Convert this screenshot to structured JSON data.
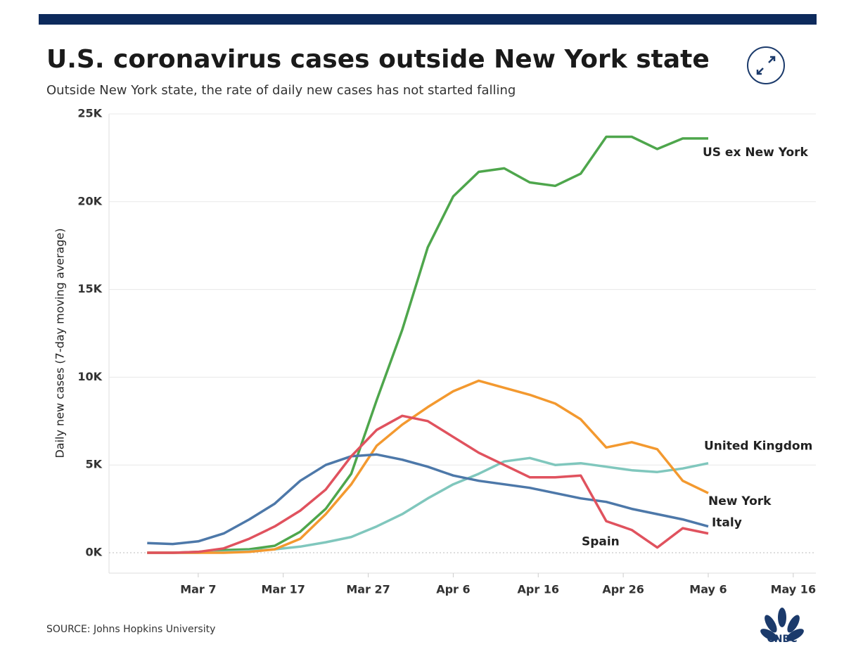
{
  "chart_data": {
    "type": "line",
    "title": "U.S. coronavirus cases outside New York state",
    "subtitle": "Outside New York state, the rate of daily new cases has not started falling",
    "y_label": "Daily new cases (7-day moving average)",
    "source": "SOURCE: Johns Hopkins University",
    "logo": "CNBC",
    "x": [
      "Mar 1",
      "Mar 4",
      "Mar 7",
      "Mar 10",
      "Mar 13",
      "Mar 16",
      "Mar 19",
      "Mar 22",
      "Mar 25",
      "Mar 28",
      "Mar 31",
      "Apr 3",
      "Apr 6",
      "Apr 9",
      "Apr 12",
      "Apr 15",
      "Apr 18",
      "Apr 21",
      "Apr 24",
      "Apr 27",
      "Apr 30",
      "May 3",
      "May 6"
    ],
    "xlim": [
      "Feb 26",
      "May 18"
    ],
    "xticks": [
      "Mar 7",
      "Mar 17",
      "Mar 27",
      "Apr 6",
      "Apr 16",
      "Apr 26",
      "May 6",
      "May 16"
    ],
    "ylim": [
      -1160,
      25000
    ],
    "yticks": [
      {
        "value": 0,
        "label": "0K"
      },
      {
        "value": 5000,
        "label": "5K"
      },
      {
        "value": 10000,
        "label": "10K"
      },
      {
        "value": 15000,
        "label": "15K"
      },
      {
        "value": 20000,
        "label": "20K"
      },
      {
        "value": 25000,
        "label": "25K"
      }
    ],
    "grid": true,
    "series": [
      {
        "name": "US ex New York",
        "color": "#4ea64c",
        "values": [
          0,
          0,
          50,
          150,
          200,
          400,
          1200,
          2500,
          4500,
          8700,
          12700,
          17400,
          20300,
          21700,
          21900,
          21100,
          20900,
          21600,
          23700,
          23700,
          23000,
          23600,
          23600
        ]
      },
      {
        "name": "United Kingdom",
        "color": "#80c7bd",
        "values": [
          0,
          0,
          0,
          50,
          100,
          200,
          350,
          600,
          900,
          1500,
          2200,
          3100,
          3900,
          4500,
          5200,
          5400,
          5000,
          5100,
          4900,
          4700,
          4600,
          4800,
          5100
        ]
      },
      {
        "name": "New York",
        "color": "#f3992f",
        "values": [
          0,
          0,
          0,
          0,
          50,
          200,
          800,
          2200,
          3900,
          6100,
          7300,
          8300,
          9200,
          9800,
          9400,
          9000,
          8500,
          7600,
          6000,
          6300,
          5900,
          4100,
          3400
        ]
      },
      {
        "name": "Italy",
        "color": "#4d78a9",
        "values": [
          550,
          500,
          650,
          1100,
          1900,
          2800,
          4100,
          5000,
          5500,
          5600,
          5300,
          4900,
          4400,
          4100,
          3900,
          3700,
          3400,
          3100,
          2900,
          2500,
          2200,
          1900,
          1500
        ]
      },
      {
        "name": "Spain",
        "color": "#e0525e",
        "values": [
          0,
          0,
          50,
          250,
          800,
          1500,
          2400,
          3600,
          5500,
          7000,
          7800,
          7500,
          6600,
          5700,
          5000,
          4300,
          4300,
          4400,
          1800,
          1300,
          300,
          1400,
          1100
        ]
      }
    ]
  }
}
